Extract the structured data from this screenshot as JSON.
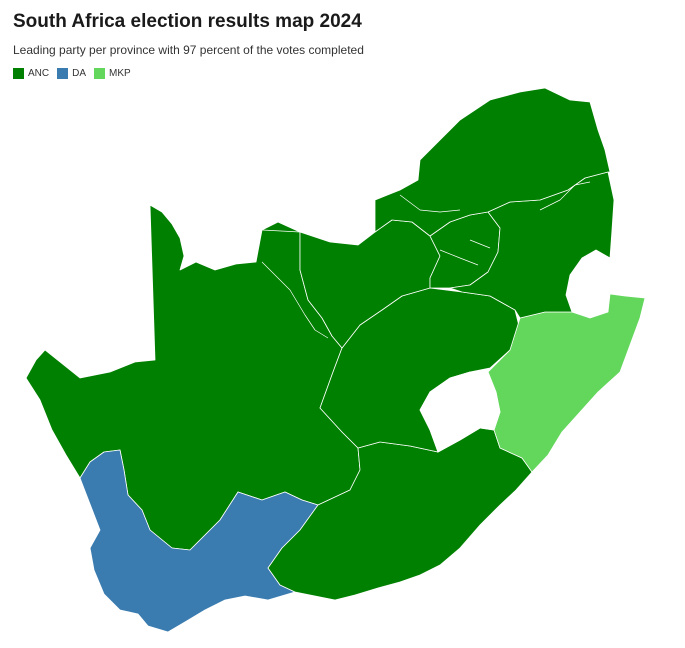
{
  "header": {
    "title": "South Africa election results map 2024",
    "subtitle": "Leading party per province with 97 percent of the votes completed"
  },
  "legend": {
    "items": [
      {
        "label": "ANC",
        "color": "#008000"
      },
      {
        "label": "DA",
        "color": "#3b7cb0"
      },
      {
        "label": "MKP",
        "color": "#63d65c"
      }
    ]
  },
  "map": {
    "parties": {
      "anc": "#008000",
      "da": "#3b7cb0",
      "mkp": "#63d65c"
    },
    "provinces": [
      {
        "id": "western-cape",
        "party": "da"
      },
      {
        "id": "northern-cape",
        "party": "anc"
      },
      {
        "id": "eastern-cape",
        "party": "anc"
      },
      {
        "id": "free-state",
        "party": "anc"
      },
      {
        "id": "kwazulu-natal",
        "party": "mkp"
      },
      {
        "id": "north-west",
        "party": "anc"
      },
      {
        "id": "gauteng",
        "party": "anc"
      },
      {
        "id": "mpumalanga",
        "party": "anc"
      },
      {
        "id": "limpopo",
        "party": "anc"
      }
    ]
  }
}
